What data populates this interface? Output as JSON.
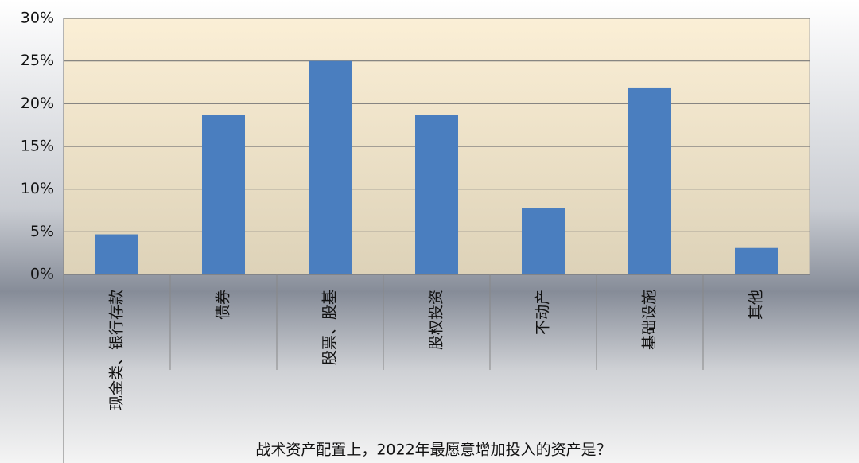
{
  "chart_data": {
    "type": "bar",
    "x_label": "战术资产配置上，2022年最愿意增加投入的资产是？",
    "categories": [
      "现金类、银行存款",
      "债券",
      "股票、股基",
      "股权投资",
      "不动产",
      "基础设施",
      "其他"
    ],
    "values": [
      4.7,
      18.7,
      25,
      18.7,
      7.8,
      21.9,
      3.1
    ],
    "color": "#4a7ebf",
    "ylim": [
      0,
      30
    ],
    "yticks": [
      {
        "value": 0,
        "label": "0%"
      },
      {
        "value": 5,
        "label": "5%"
      },
      {
        "value": 10,
        "label": "10%"
      },
      {
        "value": 15,
        "label": "15%"
      },
      {
        "value": 20,
        "label": "20%"
      },
      {
        "value": 25,
        "label": "25%"
      },
      {
        "value": 30,
        "label": "30%"
      }
    ],
    "grid": true
  }
}
